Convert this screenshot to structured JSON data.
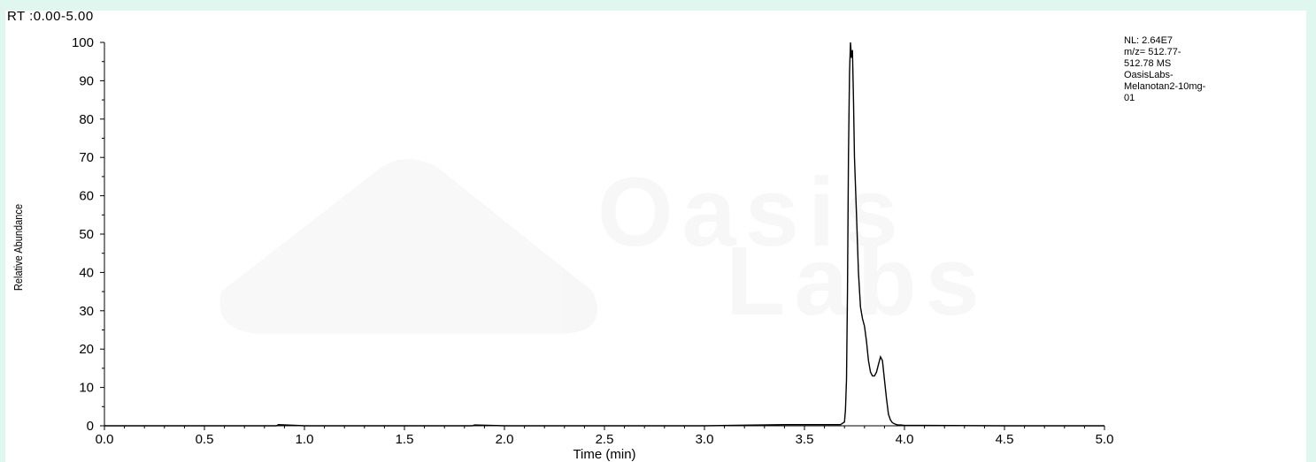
{
  "header": {
    "range_label": "RT :0.00-5.00"
  },
  "info": {
    "lines": [
      "NL: 2.64E7",
      "m/z= 512.77-",
      "512.78 MS",
      "OasisLabs-",
      "Melanotan2-10mg-",
      "01"
    ]
  },
  "watermark": {
    "line1": "Oasis",
    "line2": "Labs"
  },
  "chart_data": {
    "type": "line",
    "title": "",
    "xlabel": "Time (min)",
    "ylabel": "Relative Abundance",
    "xlim": [
      0,
      5
    ],
    "ylim": [
      0,
      100
    ],
    "x_ticks": [
      "0.0",
      "0.5",
      "1.0",
      "1.5",
      "2.0",
      "2.5",
      "3.0",
      "3.5",
      "4.0",
      "4.5",
      "5.0"
    ],
    "y_ticks": [
      "0",
      "10",
      "20",
      "30",
      "40",
      "50",
      "60",
      "70",
      "80",
      "90",
      "100"
    ],
    "grid": false,
    "series": [
      {
        "color": "#000000",
        "x": [
          0.0,
          0.5,
          0.86,
          0.87,
          1.0,
          1.5,
          1.84,
          1.85,
          2.0,
          2.5,
          3.0,
          3.4,
          3.5,
          3.6,
          3.68,
          3.7,
          3.705,
          3.71,
          3.715,
          3.72,
          3.725,
          3.73,
          3.735,
          3.74,
          3.745,
          3.75,
          3.76,
          3.77,
          3.78,
          3.79,
          3.8,
          3.81,
          3.82,
          3.83,
          3.84,
          3.85,
          3.86,
          3.87,
          3.88,
          3.89,
          3.9,
          3.91,
          3.92,
          3.93,
          3.94,
          3.95,
          3.96,
          3.97,
          3.98,
          4.0,
          4.1,
          4.5,
          5.0
        ],
        "values": [
          0,
          0,
          0,
          0.3,
          0,
          0,
          0,
          0.2,
          0,
          0,
          0,
          0.3,
          0.3,
          0.3,
          0.3,
          1,
          4,
          12,
          35,
          70,
          92,
          100,
          96,
          98,
          85,
          70,
          55,
          40,
          31,
          28,
          26,
          22,
          17,
          14,
          13,
          13,
          14,
          16,
          18,
          17,
          12,
          7,
          3,
          1.5,
          0.8,
          0.5,
          0.3,
          0.2,
          0.2,
          0.1,
          0.1,
          0,
          0
        ]
      }
    ]
  }
}
